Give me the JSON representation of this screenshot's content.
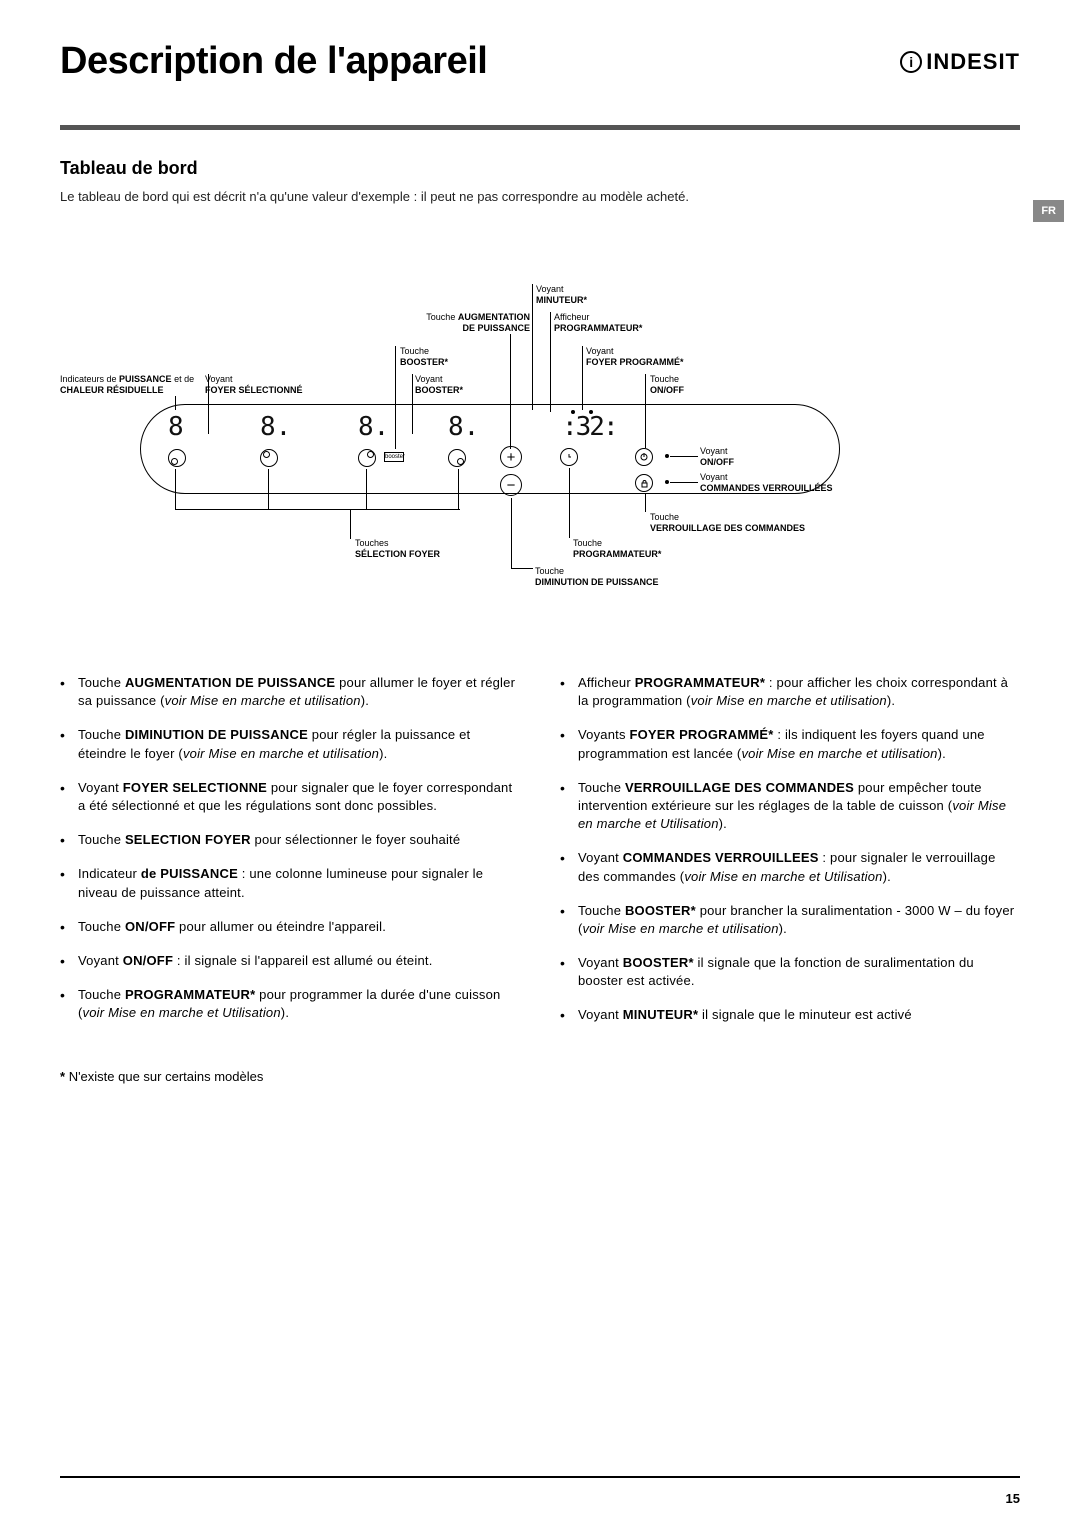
{
  "header": {
    "title": "Description de l'appareil",
    "brand": "INDESIT"
  },
  "lang_tag": "FR",
  "section_title": "Tableau de bord",
  "intro": "Le tableau de bord qui est décrit n'a qu'une valeur d'exemple : il peut ne pas correspondre au modèle acheté.",
  "diagram": {
    "labels": {
      "ind_puissance": "Indicateurs de <b>PUISSANCE</b> et de <b>CHALEUR RÉSIDUELLE</b>",
      "voyant_foyer_sel": "Voyant<br><b>FOYER SÉLECTIONNÉ</b>",
      "touche_aug": "Touche <b>AUGMENTATION<br>DE PUISSANCE</b>",
      "touche_booster": "Touche<br><b>BOOSTER*</b>",
      "voyant_booster": "Voyant<br><b>BOOSTER*</b>",
      "voyant_minuteur": "Voyant<br><b>MINUTEUR*</b>",
      "afficheur_prog": "Afficheur<br><b>PROGRAMMATEUR*</b>",
      "voyant_foyer_prog": "Voyant<br><b>FOYER PROGRAMMÉ*</b>",
      "touche_onoff": "Touche<br><b>ON/OFF</b>",
      "voyant_onoff": "Voyant<br><b>ON/OFF</b>",
      "voyant_lock": "Voyant<br><b>COMMANDES VERROUILLÉES</b>",
      "touche_lock": "Touche<br><b>VERROUILLAGE DES COMMANDES</b>",
      "touche_prog": "Touche<br><b>PROGRAMMATEUR*</b>",
      "touche_dim": "Touche<br><b>DIMINUTION DE PUISSANCE</b>",
      "touches_sel": "Touches<br><b>SÉLECTION FOYER</b>"
    },
    "display": {
      "d1": "8",
      "d2": "8.",
      "d3": "8.",
      "d4": "8.",
      "timer": "32"
    }
  },
  "bullets_left": [
    "Touche <b>AUGMENTATION DE PUISSANCE</b> pour allumer le foyer et régler sa puissance (<i>voir Mise en marche et utilisation</i>).",
    "Touche <b>DIMINUTION DE PUISSANCE</b> pour régler la puissance et éteindre le foyer (<i>voir Mise en marche et utilisation</i>).",
    "Voyant <b>FOYER SELECTIONNE</b> pour signaler que le foyer correspondant a été sélectionné et que les régulations sont donc possibles.",
    "Touche <b>SELECTION FOYER</b> pour sélectionner le foyer souhaité",
    "Indicateur <b>de PUISSANCE</b> : une colonne lumineuse pour signaler le niveau de puissance atteint.",
    "Touche <b>ON/OFF</b> pour allumer ou éteindre l'appareil.",
    "Voyant <b>ON/OFF</b> : il signale si l'appareil est allumé ou éteint.",
    "Touche <b>PROGRAMMATEUR*</b> pour programmer la durée d'une cuisson (<i>voir Mise en marche et Utilisation</i>)."
  ],
  "bullets_right": [
    "Afficheur <b>PROGRAMMATEUR*</b> : pour afficher les choix correspondant à la programmation (<i>voir Mise en marche et utilisation</i>).",
    "Voyants <b>FOYER PROGRAMMÉ*</b> : ils indiquent les foyers quand une programmation est lancée (<i>voir Mise en marche et utilisation</i>).",
    "Touche <b>VERROUILLAGE DES COMMANDES</b> pour empêcher toute intervention extérieure sur les réglages de la table de cuisson (<i>voir Mise en marche et Utilisation</i>).",
    "Voyant <b>COMMANDES VERROUILLEES</b> : pour signaler le verrouillage des commandes (<i>voir Mise en marche et Utilisation</i>).",
    "Touche <b>BOOSTER*</b> pour brancher la suralimentation - 3000 W – du foyer (<i>voir Mise en marche et utilisation</i>).",
    "Voyant <b>BOOSTER*</b> il signale que la fonction de suralimentation du booster est activée.",
    "Voyant <b>MINUTEUR*</b> il signale que le minuteur est activé"
  ],
  "footnote": "N'existe que sur certains modèles",
  "page_number": "15",
  "colors": {
    "tag_bg": "#888888",
    "hr_thick": "#555555"
  }
}
